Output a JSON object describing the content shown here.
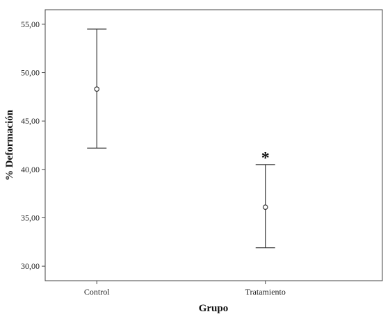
{
  "chart_data": {
    "type": "errorbar",
    "title": "",
    "xlabel": "Grupo",
    "ylabel": "% Deformación",
    "categories": [
      "Control",
      "Tratamiento"
    ],
    "series": [
      {
        "mean": [
          48.3,
          36.1
        ],
        "lower": [
          42.2,
          31.9
        ],
        "upper": [
          54.5,
          40.5
        ]
      }
    ],
    "ylim": [
      28.5,
      56.5
    ],
    "yticks": [
      30,
      35,
      40,
      45,
      50,
      55
    ],
    "ytick_labels": [
      "30,00",
      "35,00",
      "40,00",
      "45,00",
      "50,00",
      "55,00"
    ],
    "annotations": [
      {
        "category": "Tratamiento",
        "text": "*"
      }
    ],
    "grid": false,
    "legend": "none",
    "colors": {
      "line": "#333333",
      "frame": "#444444",
      "background": "#ffffff"
    }
  }
}
